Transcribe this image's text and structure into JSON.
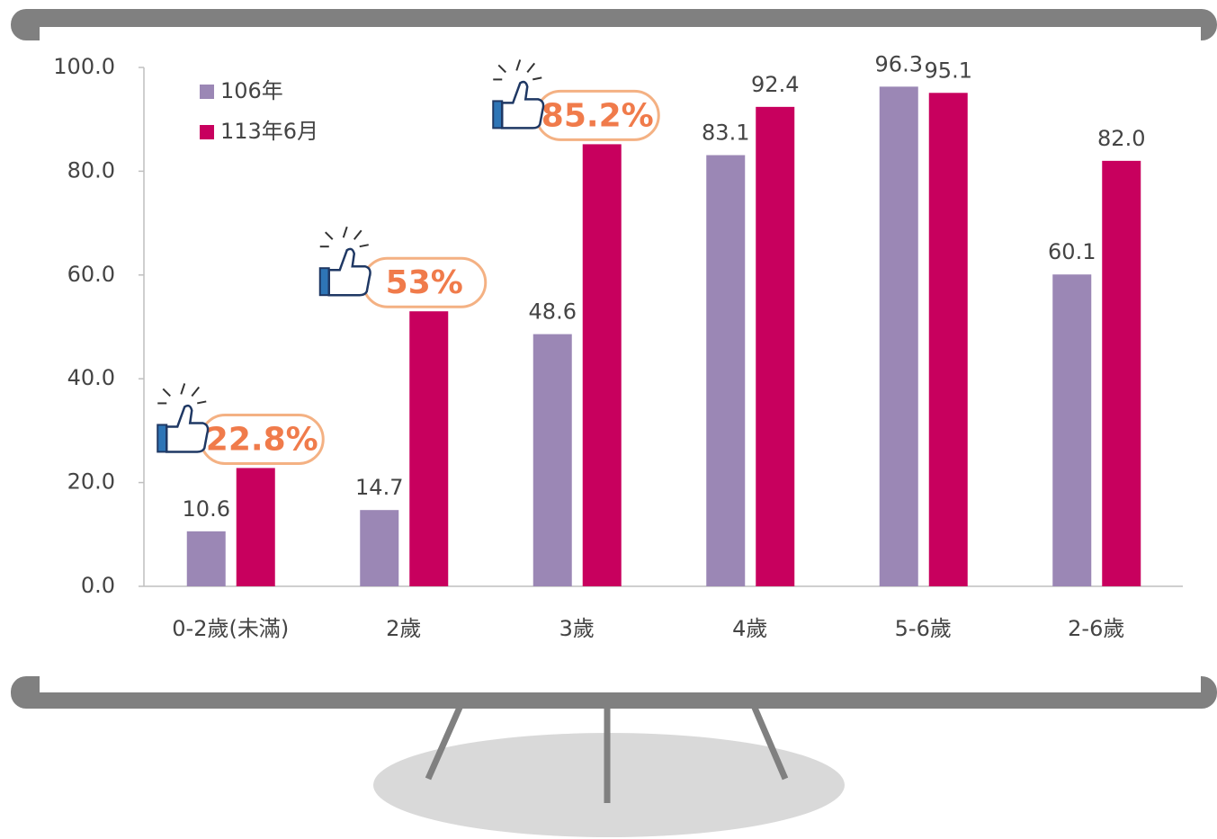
{
  "chart_data": {
    "type": "bar",
    "categories": [
      "0-2歲(未滿)",
      "2歲",
      "3歲",
      "4歲",
      "5-6歲",
      "2-6歲"
    ],
    "series": [
      {
        "name": "106年",
        "color": "#9b87b5",
        "values": [
          10.6,
          14.7,
          48.6,
          83.1,
          96.3,
          60.1
        ]
      },
      {
        "name": "113年6月",
        "color": "#c8005e",
        "values": [
          22.8,
          53,
          85.2,
          92.4,
          95.1,
          82.0
        ],
        "value_labels": [
          "22.8%",
          "53%",
          "85.2%",
          "92.4",
          "95.1",
          "82.0"
        ]
      }
    ],
    "ylim": [
      0,
      100
    ],
    "yticks": [
      {
        "value": 0,
        "label": "0.0"
      },
      {
        "value": 20,
        "label": "20.0"
      },
      {
        "value": 40,
        "label": "40.0"
      },
      {
        "value": 60,
        "label": "60.0"
      },
      {
        "value": 80,
        "label": "80.0"
      },
      {
        "value": 100,
        "label": "100.0"
      }
    ],
    "grid": false,
    "legend": "top-left"
  }
}
